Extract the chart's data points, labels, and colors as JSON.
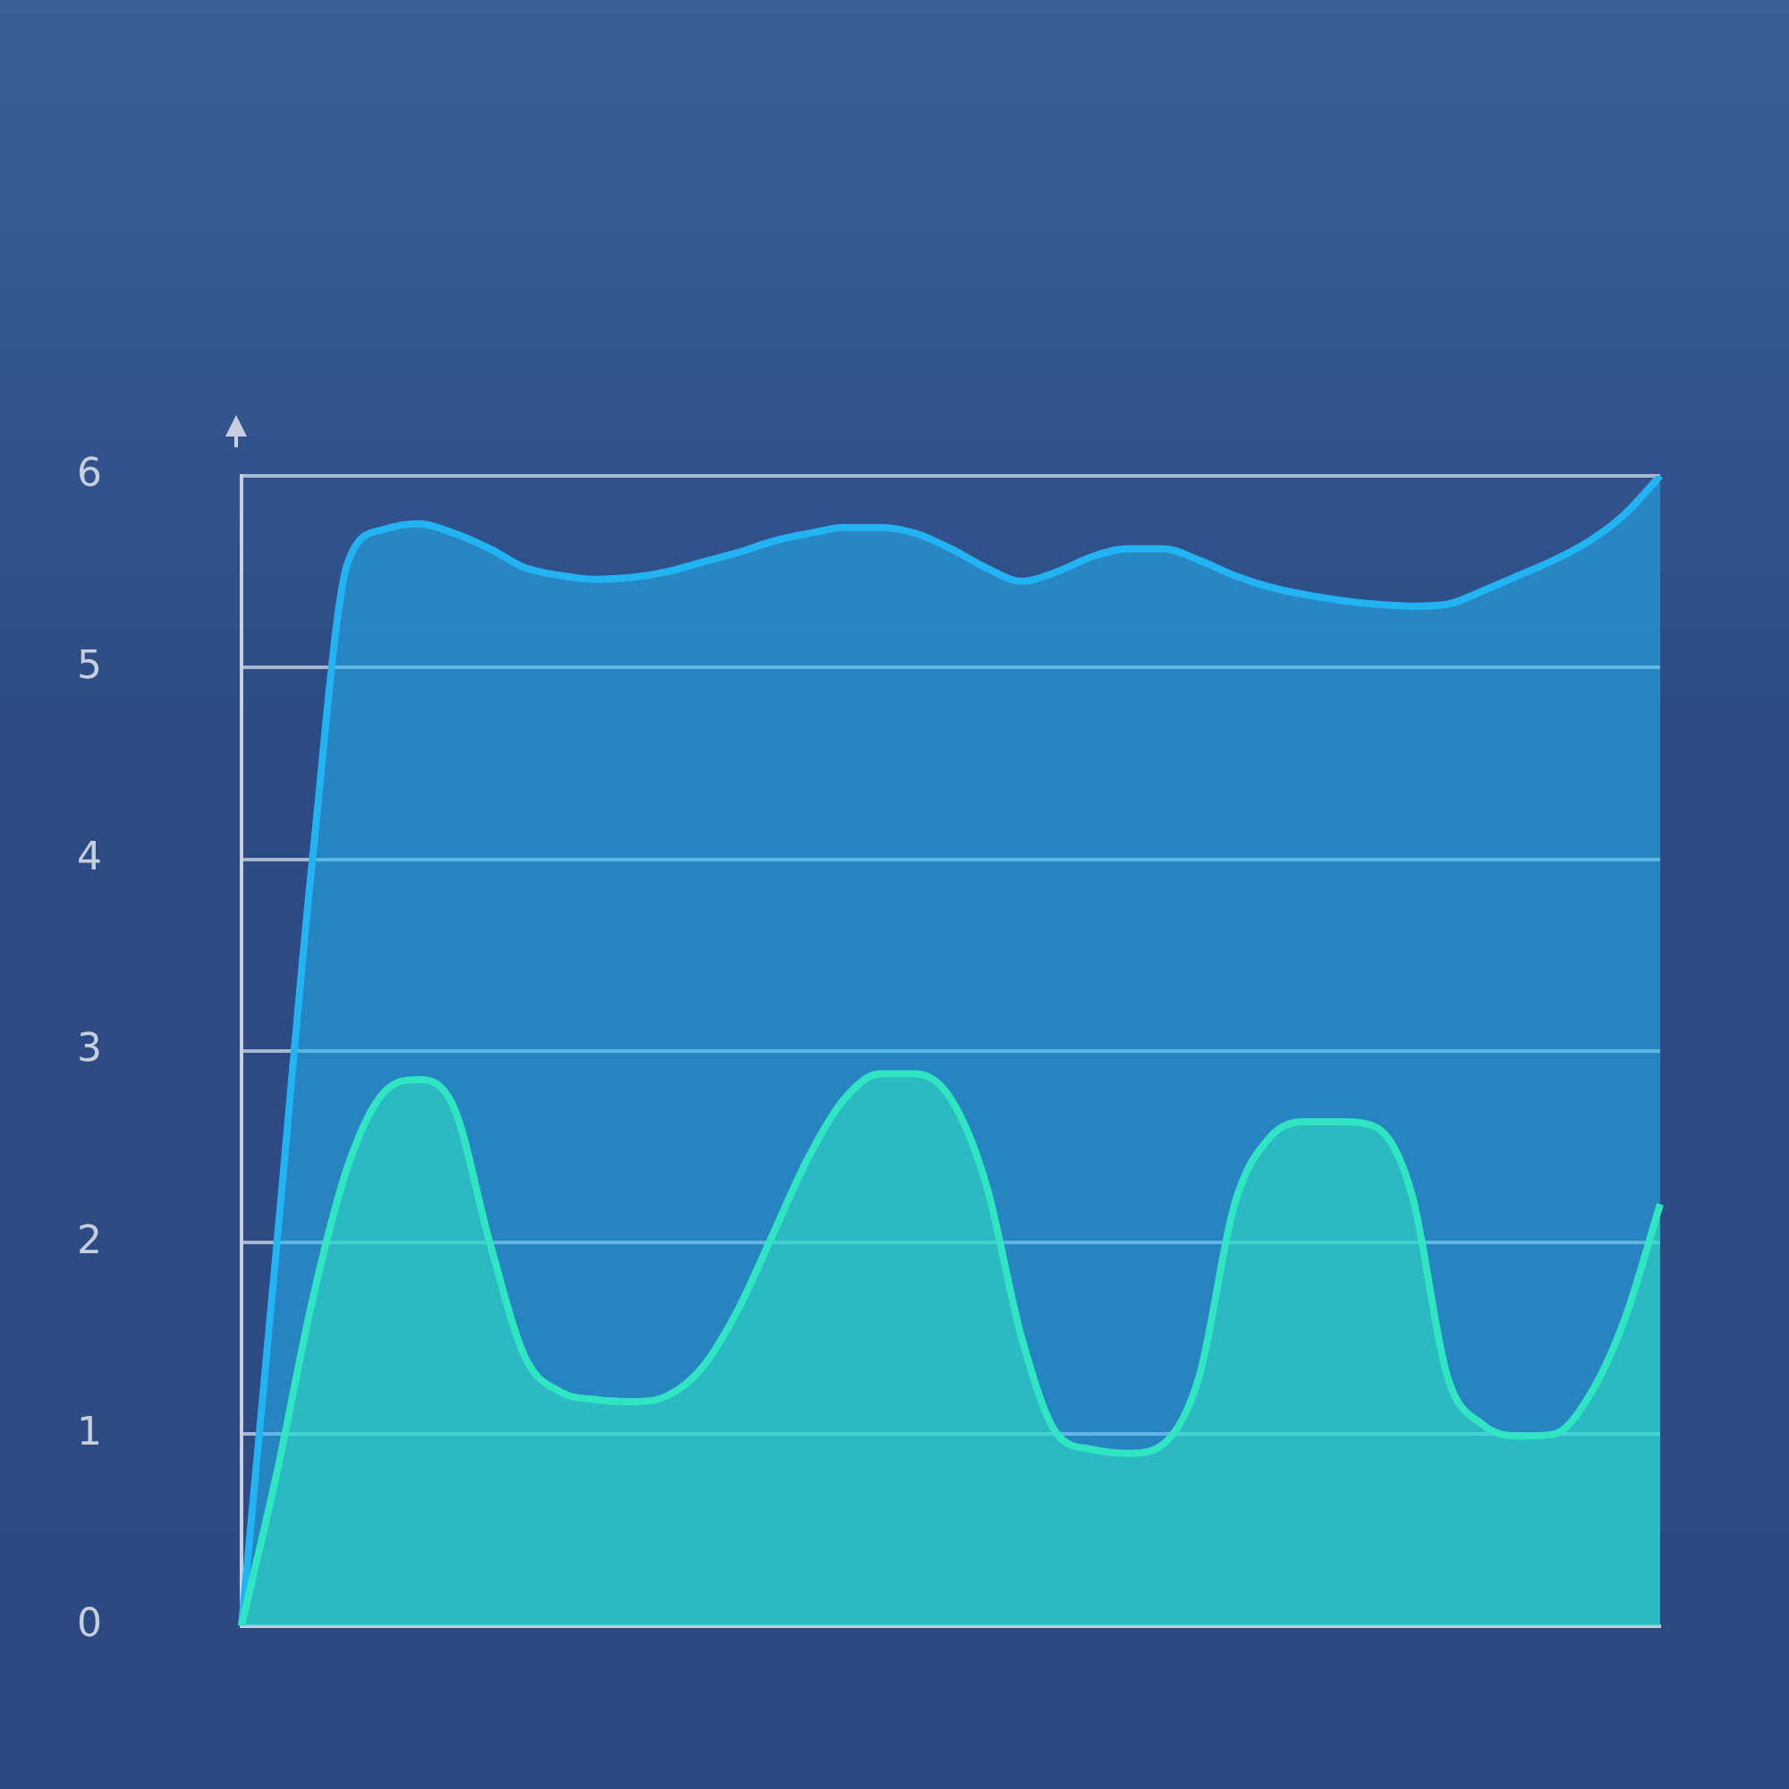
{
  "chart_data": {
    "type": "area",
    "categories": [
      null,
      null,
      null,
      null,
      null,
      null,
      null,
      null,
      null,
      null,
      null,
      null,
      null,
      null,
      null,
      null,
      null,
      null,
      null,
      null,
      null,
      null,
      null,
      null,
      null,
      null,
      null,
      null,
      null,
      null,
      null,
      null,
      null,
      null,
      null,
      null,
      null,
      null,
      null,
      null,
      null
    ],
    "series": [
      {
        "color": "#22b4f2",
        "values": [
          0,
          2.0,
          4.0,
          5.55,
          5.72,
          5.75,
          5.7,
          5.62,
          5.52,
          5.48,
          5.46,
          5.47,
          5.5,
          5.55,
          5.6,
          5.66,
          5.7,
          5.73,
          5.73,
          5.7,
          5.62,
          5.52,
          5.45,
          5.5,
          5.58,
          5.62,
          5.62,
          5.56,
          5.48,
          5.42,
          5.38,
          5.35,
          5.33,
          5.32,
          5.33,
          5.4,
          5.48,
          5.56,
          5.66,
          5.8,
          6.0
        ]
      },
      {
        "color": "#30e6c2",
        "values": [
          0,
          0.8,
          1.7,
          2.4,
          2.78,
          2.85,
          2.7,
          2.0,
          1.4,
          1.22,
          1.18,
          1.17,
          1.2,
          1.35,
          1.65,
          2.05,
          2.45,
          2.75,
          2.88,
          2.88,
          2.75,
          2.3,
          1.5,
          1.0,
          0.92,
          0.9,
          0.95,
          1.3,
          2.2,
          2.55,
          2.63,
          2.63,
          2.6,
          2.25,
          1.3,
          1.05,
          0.99,
          1.0,
          1.2,
          1.6,
          2.2
        ]
      }
    ],
    "ylim": [
      0,
      6
    ],
    "yticks": [
      0,
      1,
      2,
      3,
      4,
      5,
      6
    ],
    "grid": "y",
    "marker": "none"
  }
}
